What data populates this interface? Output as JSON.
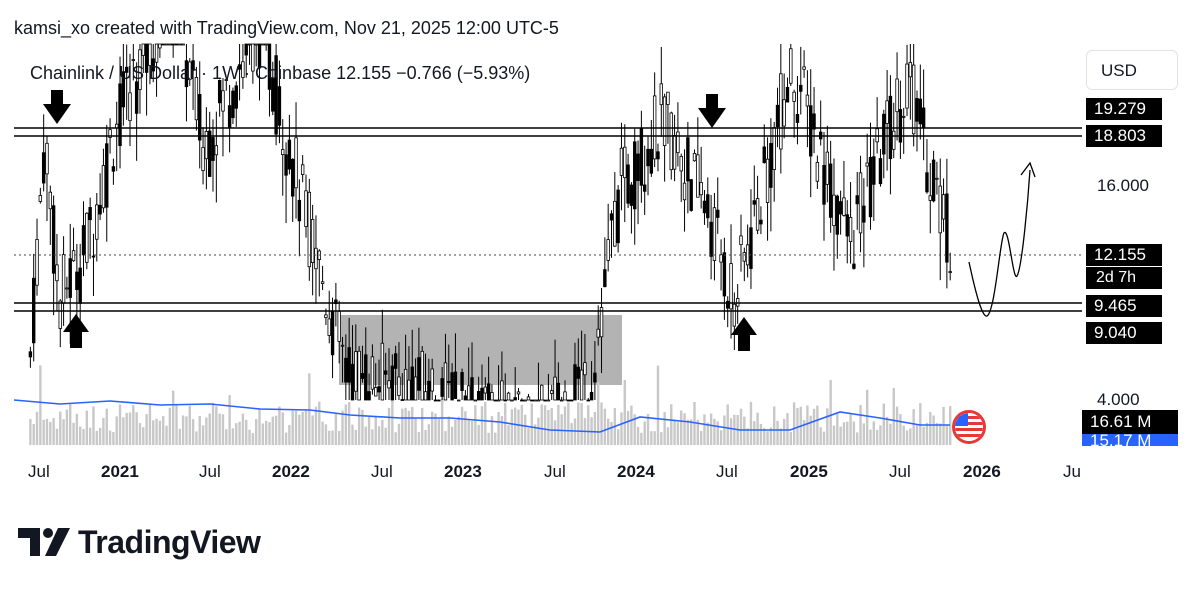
{
  "header": {
    "attribution": "kamsi_xo created with TradingView.com, Nov 21, 2025 12:00 UTC-5",
    "symbol_line": "Chainlink / US Dollar · 1W · Coinbase  12.155  −0.766 (−5.93%)"
  },
  "price_scale": {
    "currency": "USD",
    "level_16": "16.000",
    "level_4": "4.000"
  },
  "price_tags": {
    "upper_1": "19.279",
    "upper_2": "18.803",
    "current": "12.155",
    "countdown": "2d 7h",
    "lower_1": "9.465",
    "lower_2": "9.040"
  },
  "volume_tags": {
    "volume": "16.61 M",
    "volume_ma": "15.17 M"
  },
  "time_axis": [
    "Jul",
    "2021",
    "Jul",
    "2022",
    "Jul",
    "2023",
    "Jul",
    "2024",
    "Jul",
    "2025",
    "Jul",
    "2026",
    "Ju"
  ],
  "brand": {
    "name": "TradingView"
  },
  "chart_data": {
    "type": "candlestick",
    "symbol": "Chainlink / US Dollar",
    "interval": "1W",
    "exchange": "Coinbase",
    "last_price": 12.155,
    "change": -0.766,
    "change_pct": -5.93,
    "resistance_zone": [
      18.803,
      19.279
    ],
    "support_zone": [
      9.04,
      9.465
    ],
    "accumulation_box": {
      "x_start": "2022-05",
      "x_end": "2023-10",
      "y_range": [
        5.5,
        9.2
      ]
    },
    "annotations": [
      {
        "type": "down-arrow",
        "x": "2020-08"
      },
      {
        "type": "up-arrow",
        "x": "2020-09"
      },
      {
        "type": "down-arrow",
        "x": "2024-05"
      },
      {
        "type": "up-arrow",
        "x": "2024-08"
      },
      {
        "type": "projection-path",
        "x_start": "2025-11",
        "target_direction": "up"
      }
    ],
    "price_series_approx": [
      {
        "x": "2020-07",
        "y": 7.5
      },
      {
        "x": "2020-08",
        "y": 19.0
      },
      {
        "x": "2020-09",
        "y": 9.5
      },
      {
        "x": "2020-11",
        "y": 12.0
      },
      {
        "x": "2021-01",
        "y": 20.0
      },
      {
        "x": "2021-05",
        "y": 35.0
      },
      {
        "x": "2021-07",
        "y": 18.0
      },
      {
        "x": "2021-11",
        "y": 30.0
      },
      {
        "x": "2022-02",
        "y": 14.0
      },
      {
        "x": "2022-05",
        "y": 7.0
      },
      {
        "x": "2022-11",
        "y": 6.5
      },
      {
        "x": "2023-06",
        "y": 5.5
      },
      {
        "x": "2023-10",
        "y": 7.0
      },
      {
        "x": "2023-12",
        "y": 15.0
      },
      {
        "x": "2024-03",
        "y": 20.0
      },
      {
        "x": "2024-06",
        "y": 14.0
      },
      {
        "x": "2024-08",
        "y": 9.5
      },
      {
        "x": "2024-12",
        "y": 25.0
      },
      {
        "x": "2025-04",
        "y": 12.0
      },
      {
        "x": "2025-08",
        "y": 24.0
      },
      {
        "x": "2025-11",
        "y": 12.155
      }
    ],
    "volume_ma_level": 15.17,
    "last_volume": 16.61
  }
}
